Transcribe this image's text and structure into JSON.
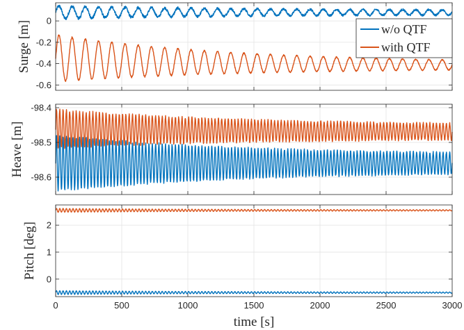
{
  "chart_data": [
    {
      "type": "line",
      "ylabel": "Surge [m]",
      "xlabel": "",
      "xlim": [
        0,
        3000
      ],
      "ylim": [
        -0.65,
        0.17
      ],
      "yticks": [
        "0",
        "-0.2",
        "-0.4",
        "-0.6"
      ],
      "ytick_values": [
        0,
        -0.2,
        -0.4,
        -0.6
      ],
      "grid": true,
      "legend_position": "top-right",
      "series": [
        {
          "name": "w/o QTF",
          "color": "#0072BD",
          "mean": 0.08,
          "osc_amplitude_start": 0.06,
          "osc_amplitude_end": 0.02,
          "period_s": 100,
          "noise": 0.015
        },
        {
          "name": "with QTF",
          "color": "#D95319",
          "mean_start": -0.35,
          "mean_end": -0.42,
          "osc_amplitude_start": 0.22,
          "osc_amplitude_end": 0.025,
          "period_s": 100,
          "noise": 0.008
        }
      ]
    },
    {
      "type": "line",
      "ylabel": "Heave [m]",
      "xlabel": "",
      "xlim": [
        0,
        3000
      ],
      "ylim": [
        -98.65,
        -98.39
      ],
      "yticks": [
        "-98.4",
        "-98.5",
        "-98.6"
      ],
      "ytick_values": [
        -98.4,
        -98.5,
        -98.6
      ],
      "grid": true,
      "series": [
        {
          "name": "w/o QTF",
          "color": "#0072BD",
          "mean_start": -98.56,
          "mean_end": -98.56,
          "osc_amplitude_start": 0.08,
          "osc_amplitude_end": 0.025,
          "period_s": 25,
          "noise": 0.004
        },
        {
          "name": "with QTF",
          "color": "#D95319",
          "mean_start": -98.46,
          "mean_end": -98.47,
          "osc_amplitude_start": 0.055,
          "osc_amplitude_end": 0.02,
          "period_s": 25,
          "noise": 0.004
        }
      ]
    },
    {
      "type": "line",
      "ylabel": "Pitch [deg]",
      "xlabel": "time [s]",
      "xlim": [
        0,
        3000
      ],
      "ylim": [
        -0.65,
        2.75
      ],
      "yticks": [
        "2",
        "1",
        "0"
      ],
      "ytick_values": [
        2,
        1,
        0
      ],
      "xticks": [
        "0",
        "500",
        "1000",
        "1500",
        "2000",
        "2500",
        "3000"
      ],
      "xtick_values": [
        0,
        500,
        1000,
        1500,
        2000,
        2500,
        3000
      ],
      "grid": true,
      "series": [
        {
          "name": "w/o QTF",
          "color": "#0072BD",
          "mean": -0.5,
          "osc_amplitude_start": 0.07,
          "osc_amplitude_end": 0.015,
          "period_s": 25,
          "noise": 0.005
        },
        {
          "name": "with QTF",
          "color": "#D95319",
          "mean": 2.55,
          "osc_amplitude_start": 0.07,
          "osc_amplitude_end": 0.015,
          "period_s": 25,
          "noise": 0.005
        }
      ]
    }
  ]
}
